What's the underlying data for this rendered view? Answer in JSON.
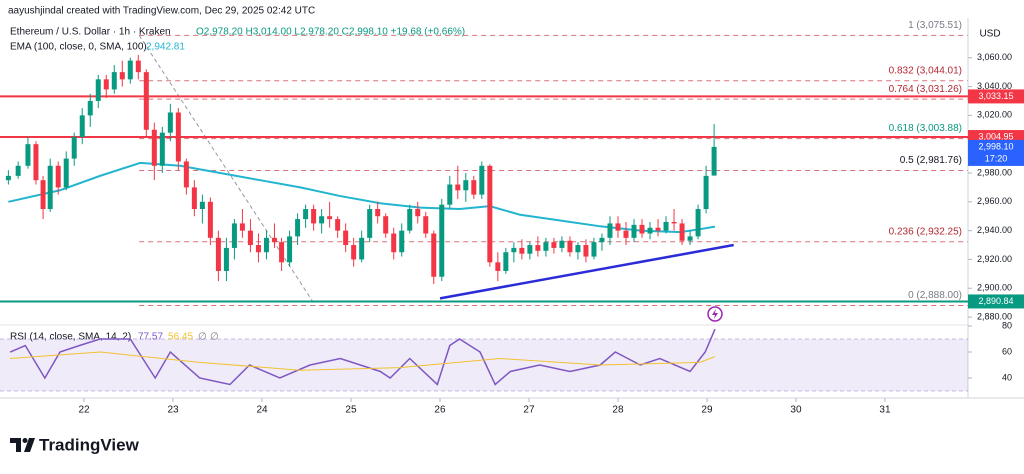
{
  "header": {
    "author_line": "aayushjindal created with TradingView.com, Dec 29, 2025 02:42 UTC"
  },
  "footer": {
    "brand": "TradingView"
  },
  "chart_data": [
    {
      "type": "candlestick",
      "title": "Ethereum / U.S. Dollar · 1h · Kraken",
      "ohlc_text": "O2,978.20 H3,014.00 L2,978.20 C2,998.10 +19.68 (+0.66%)",
      "currency": "USD",
      "x": [
        21.15,
        21.26,
        21.37,
        21.46,
        21.54,
        21.62,
        21.71,
        21.8,
        21.89,
        21.98,
        22.07,
        22.16,
        22.25,
        22.34,
        22.43,
        22.52,
        22.61,
        22.7,
        22.79,
        22.88,
        22.97,
        23.06,
        23.15,
        23.24,
        23.33,
        23.42,
        23.51,
        23.6,
        23.69,
        23.78,
        23.87,
        23.96,
        24.05,
        24.14,
        24.22,
        24.31,
        24.4,
        24.49,
        24.58,
        24.67,
        24.76,
        24.85,
        24.94,
        25.03,
        25.12,
        25.21,
        25.3,
        25.39,
        25.48,
        25.57,
        25.66,
        25.75,
        25.84,
        25.93,
        26.02,
        26.11,
        26.2,
        26.29,
        26.38,
        26.47,
        26.56,
        26.65,
        26.74,
        26.83,
        26.92,
        27.01,
        27.1,
        27.19,
        27.28,
        27.37,
        27.46,
        27.55,
        27.64,
        27.73,
        27.82,
        27.91,
        28.0,
        28.09,
        28.18,
        28.27,
        28.36,
        28.45,
        28.54,
        28.63,
        28.72,
        28.81,
        28.9,
        28.99,
        29.08
      ],
      "open": [
        2975,
        2978,
        2985,
        3000,
        2975,
        2955,
        2985,
        2970,
        2990,
        3005,
        3020,
        3030,
        3045,
        3038,
        3050,
        3045,
        3058,
        3050,
        3010,
        2985,
        3008,
        3022,
        2988,
        2970,
        2955,
        2960,
        2935,
        2912,
        2928,
        2945,
        2940,
        2930,
        2925,
        2935,
        2932,
        2918,
        2936,
        2948,
        2955,
        2945,
        2950,
        2948,
        2940,
        2930,
        2920,
        2935,
        2955,
        2950,
        2938,
        2925,
        2940,
        2955,
        2950,
        2938,
        2908,
        2958,
        2972,
        2968,
        2975,
        2965,
        2985,
        2918,
        2912,
        2925,
        2928,
        2924,
        2930,
        2926,
        2932,
        2928,
        2933,
        2925,
        2930,
        2922,
        2932,
        2935,
        2945,
        2940,
        2935,
        2944,
        2938,
        2942,
        2940,
        2946,
        2945,
        2933,
        2936,
        2955,
        2978.2
      ],
      "high": [
        2982,
        2988,
        3005,
        3002,
        2978,
        2990,
        2988,
        2995,
        3008,
        3025,
        3035,
        3048,
        3048,
        3055,
        3058,
        3060,
        3062,
        3052,
        3015,
        3012,
        3028,
        3025,
        2990,
        2975,
        2965,
        2963,
        2940,
        2935,
        2948,
        2955,
        2948,
        2938,
        2940,
        2945,
        2935,
        2940,
        2952,
        2958,
        2958,
        2955,
        2960,
        2950,
        2945,
        2935,
        2940,
        2958,
        2960,
        2952,
        2942,
        2945,
        2958,
        2960,
        2953,
        2940,
        2962,
        2978,
        2985,
        2980,
        2978,
        2988,
        2986,
        2925,
        2928,
        2932,
        2934,
        2932,
        2936,
        2935,
        2935,
        2936,
        2936,
        2932,
        2934,
        2935,
        2938,
        2950,
        2950,
        2946,
        2948,
        2948,
        2946,
        2948,
        2950,
        2955,
        2948,
        2940,
        2958,
        2985,
        3014
      ],
      "low": [
        2972,
        2976,
        2983,
        2972,
        2948,
        2953,
        2965,
        2968,
        2985,
        3000,
        3012,
        3025,
        3032,
        3035,
        3040,
        3042,
        3045,
        3005,
        2975,
        2980,
        3002,
        2982,
        2965,
        2950,
        2945,
        2930,
        2905,
        2905,
        2920,
        2935,
        2925,
        2918,
        2920,
        2928,
        2912,
        2915,
        2930,
        2942,
        2940,
        2938,
        2942,
        2935,
        2925,
        2915,
        2918,
        2932,
        2945,
        2935,
        2920,
        2922,
        2938,
        2945,
        2935,
        2903,
        2905,
        2955,
        2962,
        2960,
        2962,
        2962,
        2915,
        2905,
        2910,
        2918,
        2920,
        2920,
        2922,
        2922,
        2924,
        2925,
        2922,
        2920,
        2918,
        2920,
        2926,
        2930,
        2935,
        2930,
        2932,
        2935,
        2934,
        2936,
        2938,
        2940,
        2930,
        2930,
        2934,
        2952,
        2978.2
      ],
      "close": [
        2978,
        2985,
        3000,
        2975,
        2955,
        2985,
        2970,
        2990,
        3005,
        3020,
        3030,
        3045,
        3038,
        3050,
        3045,
        3058,
        3050,
        3010,
        2985,
        3008,
        3022,
        2988,
        2970,
        2955,
        2960,
        2935,
        2912,
        2928,
        2945,
        2940,
        2930,
        2925,
        2935,
        2932,
        2918,
        2936,
        2948,
        2955,
        2945,
        2950,
        2948,
        2940,
        2930,
        2920,
        2935,
        2955,
        2950,
        2938,
        2925,
        2940,
        2955,
        2950,
        2938,
        2908,
        2958,
        2972,
        2968,
        2975,
        2965,
        2985,
        2918,
        2912,
        2925,
        2928,
        2924,
        2930,
        2926,
        2932,
        2928,
        2933,
        2925,
        2930,
        2922,
        2932,
        2935,
        2945,
        2940,
        2935,
        2944,
        2938,
        2942,
        2940,
        2946,
        2945,
        2933,
        2936,
        2955,
        2978,
        2998.1
      ],
      "up_color": "#089981",
      "down_color": "#f23645",
      "xlim": [
        21.056,
        31.933
      ],
      "xticks": [
        22,
        23,
        24,
        25,
        26,
        27,
        28,
        29,
        30,
        31
      ],
      "ylim": [
        2874.5,
        3084.8
      ],
      "yticks": [
        {
          "value": 3060,
          "label": "3,060.00"
        },
        {
          "value": 3040,
          "label": "3,040.00"
        },
        {
          "value": 3020,
          "label": "3,020.00"
        },
        {
          "value": 2980,
          "label": "2,980.00"
        },
        {
          "value": 2960,
          "label": "2,960.00"
        },
        {
          "value": 2940,
          "label": "2,940.00"
        },
        {
          "value": 2920,
          "label": "2,920.00"
        },
        {
          "value": 2900,
          "label": "2,900.00"
        },
        {
          "value": 2880,
          "label": "2,880.00"
        }
      ],
      "ema": {
        "label": "EMA (100, close, 0, SMA, 100)",
        "color": "#22b5d0",
        "x": [
          21.15,
          21.73,
          22.18,
          22.63,
          23.08,
          23.53,
          23.98,
          24.43,
          24.88,
          25.33,
          25.78,
          26.22,
          26.56,
          26.9,
          27.35,
          27.8,
          28.25,
          28.7,
          28.92,
          29.09
        ],
        "values": [
          2960,
          2968,
          2978,
          2987,
          2985,
          2980,
          2975,
          2970,
          2964,
          2959,
          2956,
          2955,
          2957,
          2951,
          2947,
          2943,
          2940,
          2939,
          2941,
          2942.81
        ],
        "value_labels": [
          null,
          null,
          null,
          null,
          null,
          null,
          null,
          null,
          null,
          null,
          null,
          null,
          null,
          null,
          null,
          null,
          null,
          null,
          null,
          "2,942.81"
        ]
      },
      "fib_levels": [
        {
          "value": 3075.51,
          "label": "1 (3,075.51)",
          "color": "#787b86"
        },
        {
          "value": 3044.01,
          "label": "0.832 (3,044.01)",
          "color": "#b22833"
        },
        {
          "value": 3031.26,
          "label": "0.764 (3,031.26)",
          "color": "#b22833"
        },
        {
          "value": 3003.88,
          "label": "0.618 (3,003.88)",
          "color": "#089981"
        },
        {
          "value": 2981.76,
          "label": "0.5 (2,981.76)",
          "color": "#131722"
        },
        {
          "value": 2932.25,
          "label": "0.236 (2,932.25)",
          "color": "#b22833"
        },
        {
          "value": 2888,
          "label": "0 (2,888.00)",
          "color": "#787b86"
        }
      ],
      "fib_anchor_x": [
        22.62,
        24.6
      ],
      "fib_line_color": "#d9737b",
      "price_lines": [
        {
          "value": 3033.15,
          "label": "3,033.15",
          "color": "#f23645"
        },
        {
          "value": 3004.95,
          "label": "3,004.95",
          "color": "#f23645"
        },
        {
          "value": 2890.84,
          "label": "2,890.84",
          "color": "#089981"
        }
      ],
      "last_price": {
        "value": 2998.1,
        "label": "2,998.10",
        "countdown": "17:20",
        "color": "#2962ff"
      },
      "trendline": {
        "x": [
          26.0,
          29.3
        ],
        "values": [
          2893,
          2930
        ],
        "color": "#2b2bd8"
      }
    },
    {
      "type": "line",
      "title": "RSI (14, close, SMA, 14, 2)",
      "flags": [
        "∅",
        "∅"
      ],
      "ylim": [
        26.9,
        80.8
      ],
      "yticks": [
        80,
        60,
        40
      ],
      "band": [
        30,
        70
      ],
      "band_color": "#7e57c2",
      "series": [
        {
          "color": "#7e57c2",
          "x": [
            21.17,
            21.34,
            21.56,
            21.73,
            21.95,
            22.18,
            22.52,
            22.8,
            22.97,
            23.3,
            23.64,
            23.86,
            24.2,
            24.54,
            24.88,
            25.33,
            25.44,
            25.66,
            25.97,
            26.11,
            26.22,
            26.45,
            26.62,
            26.79,
            27.12,
            27.46,
            27.8,
            27.97,
            28.25,
            28.47,
            28.81,
            28.98,
            29.09
          ],
          "values": [
            60,
            65,
            40,
            60,
            65,
            70,
            70,
            40,
            60,
            40,
            35,
            50,
            40,
            50,
            55,
            45,
            40,
            55,
            35,
            65,
            70,
            60,
            35,
            45,
            50,
            45,
            50,
            60,
            50,
            55,
            45,
            60,
            77.57
          ]
        },
        {
          "color": "#f2c230",
          "x": [
            21.17,
            22.18,
            23.3,
            24.43,
            25.55,
            26.67,
            27.8,
            28.92,
            29.09
          ],
          "values": [
            55,
            60,
            52,
            46,
            48,
            55,
            50,
            52,
            56.45
          ]
        }
      ]
    }
  ]
}
